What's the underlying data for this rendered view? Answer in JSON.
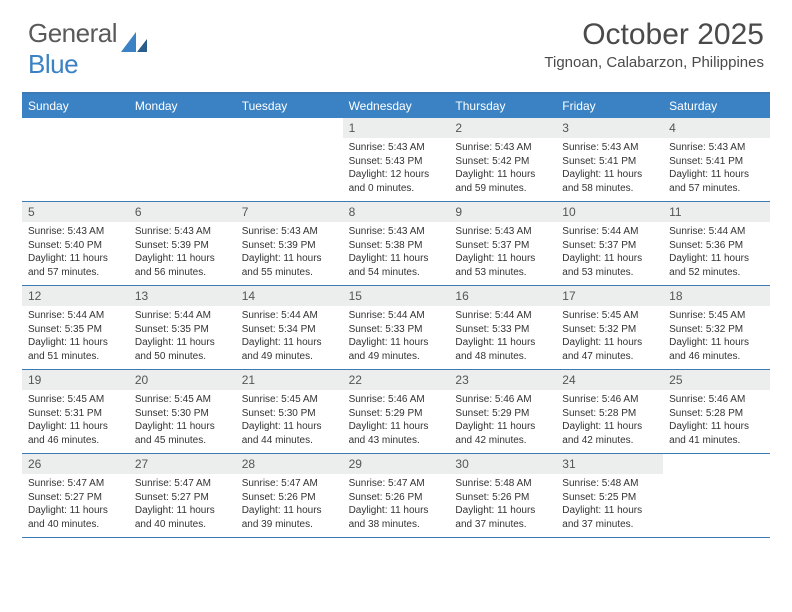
{
  "logo": {
    "text_general": "General",
    "text_blue": "Blue"
  },
  "title": "October 2025",
  "subtitle": "Tignoan, Calabarzon, Philippines",
  "colors": {
    "brand": "#3b82c4",
    "header_border": "#3b7ab5",
    "daynum_bg": "#eceded",
    "text": "#3a3a3a"
  },
  "day_names": [
    "Sunday",
    "Monday",
    "Tuesday",
    "Wednesday",
    "Thursday",
    "Friday",
    "Saturday"
  ],
  "weeks": [
    [
      null,
      null,
      null,
      {
        "n": "1",
        "sr": "5:43 AM",
        "ss": "5:43 PM",
        "dl": "12 hours and 0 minutes."
      },
      {
        "n": "2",
        "sr": "5:43 AM",
        "ss": "5:42 PM",
        "dl": "11 hours and 59 minutes."
      },
      {
        "n": "3",
        "sr": "5:43 AM",
        "ss": "5:41 PM",
        "dl": "11 hours and 58 minutes."
      },
      {
        "n": "4",
        "sr": "5:43 AM",
        "ss": "5:41 PM",
        "dl": "11 hours and 57 minutes."
      }
    ],
    [
      {
        "n": "5",
        "sr": "5:43 AM",
        "ss": "5:40 PM",
        "dl": "11 hours and 57 minutes."
      },
      {
        "n": "6",
        "sr": "5:43 AM",
        "ss": "5:39 PM",
        "dl": "11 hours and 56 minutes."
      },
      {
        "n": "7",
        "sr": "5:43 AM",
        "ss": "5:39 PM",
        "dl": "11 hours and 55 minutes."
      },
      {
        "n": "8",
        "sr": "5:43 AM",
        "ss": "5:38 PM",
        "dl": "11 hours and 54 minutes."
      },
      {
        "n": "9",
        "sr": "5:43 AM",
        "ss": "5:37 PM",
        "dl": "11 hours and 53 minutes."
      },
      {
        "n": "10",
        "sr": "5:44 AM",
        "ss": "5:37 PM",
        "dl": "11 hours and 53 minutes."
      },
      {
        "n": "11",
        "sr": "5:44 AM",
        "ss": "5:36 PM",
        "dl": "11 hours and 52 minutes."
      }
    ],
    [
      {
        "n": "12",
        "sr": "5:44 AM",
        "ss": "5:35 PM",
        "dl": "11 hours and 51 minutes."
      },
      {
        "n": "13",
        "sr": "5:44 AM",
        "ss": "5:35 PM",
        "dl": "11 hours and 50 minutes."
      },
      {
        "n": "14",
        "sr": "5:44 AM",
        "ss": "5:34 PM",
        "dl": "11 hours and 49 minutes."
      },
      {
        "n": "15",
        "sr": "5:44 AM",
        "ss": "5:33 PM",
        "dl": "11 hours and 49 minutes."
      },
      {
        "n": "16",
        "sr": "5:44 AM",
        "ss": "5:33 PM",
        "dl": "11 hours and 48 minutes."
      },
      {
        "n": "17",
        "sr": "5:45 AM",
        "ss": "5:32 PM",
        "dl": "11 hours and 47 minutes."
      },
      {
        "n": "18",
        "sr": "5:45 AM",
        "ss": "5:32 PM",
        "dl": "11 hours and 46 minutes."
      }
    ],
    [
      {
        "n": "19",
        "sr": "5:45 AM",
        "ss": "5:31 PM",
        "dl": "11 hours and 46 minutes."
      },
      {
        "n": "20",
        "sr": "5:45 AM",
        "ss": "5:30 PM",
        "dl": "11 hours and 45 minutes."
      },
      {
        "n": "21",
        "sr": "5:45 AM",
        "ss": "5:30 PM",
        "dl": "11 hours and 44 minutes."
      },
      {
        "n": "22",
        "sr": "5:46 AM",
        "ss": "5:29 PM",
        "dl": "11 hours and 43 minutes."
      },
      {
        "n": "23",
        "sr": "5:46 AM",
        "ss": "5:29 PM",
        "dl": "11 hours and 42 minutes."
      },
      {
        "n": "24",
        "sr": "5:46 AM",
        "ss": "5:28 PM",
        "dl": "11 hours and 42 minutes."
      },
      {
        "n": "25",
        "sr": "5:46 AM",
        "ss": "5:28 PM",
        "dl": "11 hours and 41 minutes."
      }
    ],
    [
      {
        "n": "26",
        "sr": "5:47 AM",
        "ss": "5:27 PM",
        "dl": "11 hours and 40 minutes."
      },
      {
        "n": "27",
        "sr": "5:47 AM",
        "ss": "5:27 PM",
        "dl": "11 hours and 40 minutes."
      },
      {
        "n": "28",
        "sr": "5:47 AM",
        "ss": "5:26 PM",
        "dl": "11 hours and 39 minutes."
      },
      {
        "n": "29",
        "sr": "5:47 AM",
        "ss": "5:26 PM",
        "dl": "11 hours and 38 minutes."
      },
      {
        "n": "30",
        "sr": "5:48 AM",
        "ss": "5:26 PM",
        "dl": "11 hours and 37 minutes."
      },
      {
        "n": "31",
        "sr": "5:48 AM",
        "ss": "5:25 PM",
        "dl": "11 hours and 37 minutes."
      },
      null
    ]
  ],
  "labels": {
    "sunrise": "Sunrise:",
    "sunset": "Sunset:",
    "daylight": "Daylight:"
  }
}
